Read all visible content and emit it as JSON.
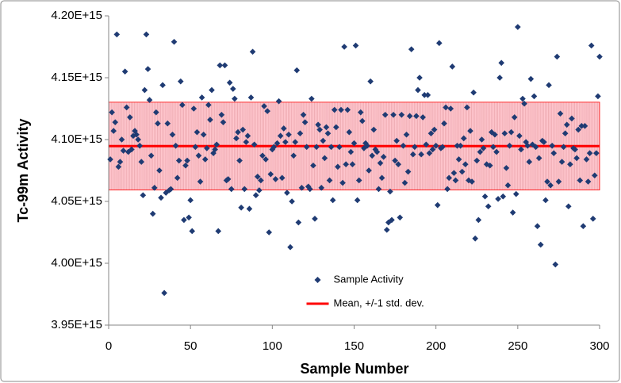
{
  "chart_data": {
    "type": "scatter",
    "x_label": "Sample Number",
    "y_label": "Tc-99m Activity",
    "x": [
      1,
      2,
      3,
      4,
      5,
      6,
      7,
      8,
      9,
      10,
      11,
      12,
      13,
      14,
      15,
      16,
      17,
      18,
      19,
      20,
      21,
      22,
      23,
      24,
      25,
      26,
      27,
      28,
      29,
      30,
      31,
      32,
      33,
      34,
      35,
      36,
      37,
      38,
      39,
      40,
      41,
      42,
      43,
      44,
      45,
      46,
      47,
      48,
      49,
      50,
      51,
      52,
      53,
      54,
      55,
      56,
      57,
      58,
      59,
      60,
      61,
      62,
      63,
      64,
      65,
      66,
      67,
      68,
      69,
      70,
      71,
      72,
      73,
      74,
      75,
      76,
      77,
      78,
      79,
      80,
      81,
      82,
      83,
      84,
      85,
      86,
      87,
      88,
      89,
      90,
      91,
      92,
      93,
      94,
      95,
      96,
      97,
      98,
      99,
      100,
      101,
      102,
      103,
      104,
      105,
      106,
      107,
      108,
      109,
      110,
      111,
      112,
      113,
      114,
      115,
      116,
      117,
      118,
      119,
      120,
      121,
      122,
      123,
      124,
      125,
      126,
      127,
      128,
      129,
      130,
      131,
      132,
      133,
      134,
      135,
      136,
      137,
      138,
      139,
      140,
      141,
      142,
      143,
      144,
      145,
      146,
      147,
      148,
      149,
      150,
      151,
      152,
      153,
      154,
      155,
      156,
      157,
      158,
      159,
      160,
      161,
      162,
      163,
      164,
      165,
      166,
      167,
      168,
      169,
      170,
      171,
      172,
      173,
      174,
      175,
      176,
      177,
      178,
      179,
      180,
      181,
      182,
      183,
      184,
      185,
      186,
      187,
      188,
      189,
      190,
      191,
      192,
      193,
      194,
      195,
      196,
      197,
      198,
      199,
      200,
      201,
      202,
      203,
      204,
      205,
      206,
      207,
      208,
      209,
      210,
      211,
      212,
      213,
      214,
      215,
      216,
      217,
      218,
      219,
      220,
      221,
      222,
      223,
      224,
      225,
      226,
      227,
      228,
      229,
      230,
      231,
      232,
      233,
      234,
      235,
      236,
      237,
      238,
      239,
      240,
      241,
      242,
      243,
      244,
      245,
      246,
      247,
      248,
      249,
      250,
      251,
      252,
      253,
      254,
      255,
      256,
      257,
      258,
      259,
      260,
      261,
      262,
      263,
      264,
      265,
      266,
      267,
      268,
      269,
      270,
      271,
      272,
      273,
      274,
      275,
      276,
      277,
      278,
      279,
      280,
      281,
      282,
      283,
      284,
      285,
      286,
      287,
      288,
      289,
      290,
      291,
      292,
      293,
      294,
      295,
      296,
      297,
      298,
      299,
      300
    ],
    "series": [
      {
        "name": "Sample Activity",
        "color": "#1f3b73",
        "values": [
          4084000000000000.0,
          4122000000000000.0,
          4107000000000000.0,
          4114000000000000.0,
          4185000000000000.0,
          4078000000000000.0,
          4082000000000000.0,
          4100000000000000.0,
          4091000000000000.0,
          4155000000000000.0,
          4126000000000000.0,
          4090000000000000.0,
          4118000000000000.0,
          4092000000000000.0,
          4103000000000000.0,
          4107000000000000.0,
          4104000000000000.0,
          4100000000000000.0,
          4095000000000000.0,
          4082000000000000.0,
          4055000000000000.0,
          4140000000000000.0,
          4185000000000000.0,
          4157000000000000.0,
          4132000000000000.0,
          4087000000000000.0,
          4040000000000000.0,
          4061000000000000.0,
          4122000000000000.0,
          4113000000000000.0,
          4075000000000000.0,
          4053000000000000.0,
          4144000000000000.0,
          3976000000000000.0,
          4057000000000000.0,
          4113000000000000.0,
          4059000000000000.0,
          4060000000000000.0,
          4104000000000000.0,
          4179000000000000.0,
          4095000000000000.0,
          4069000000000000.0,
          4083000000000000.0,
          4147000000000000.0,
          4128000000000000.0,
          4035000000000000.0,
          4079000000000000.0,
          4083000000000000.0,
          4037000000000000.0,
          4051000000000000.0,
          4026000000000000.0,
          4125000000000000.0,
          4094000000000000.0,
          4106000000000000.0,
          4087000000000000.0,
          4066000000000000.0,
          4134000000000000.0,
          4104000000000000.0,
          4084000000000000.0,
          4093000000000000.0,
          4128000000000000.0,
          4116000000000000.0,
          4140000000000000.0,
          4089000000000000.0,
          4092000000000000.0,
          4096000000000000.0,
          4026000000000000.0,
          4160000000000000.0,
          4120000000000000.0,
          4114000000000000.0,
          4160000000000000.0,
          4067000000000000.0,
          4068000000000000.0,
          4146000000000000.0,
          4060000000000000.0,
          4141000000000000.0,
          4133000000000000.0,
          4101000000000000.0,
          4106000000000000.0,
          4083000000000000.0,
          4045000000000000.0,
          4108000000000000.0,
          4060000000000000.0,
          4098000000000000.0,
          4103000000000000.0,
          4044000000000000.0,
          4134000000000000.0,
          4171000000000000.0,
          4096000000000000.0,
          4055000000000000.0,
          4070000000000000.0,
          4059000000000000.0,
          4067000000000000.0,
          4087000000000000.0,
          4127000000000000.0,
          4084000000000000.0,
          4123000000000000.0,
          4025000000000000.0,
          4072000000000000.0,
          4092000000000000.0,
          4094000000000000.0,
          4068000000000000.0,
          4097000000000000.0,
          4131000000000000.0,
          4103000000000000.0,
          4069000000000000.0,
          4109000000000000.0,
          4098000000000000.0,
          4057000000000000.0,
          4104000000000000.0,
          4013000000000000.0,
          4050000000000000.0,
          4087000000000000.0,
          4098000000000000.0,
          4156000000000000.0,
          4033000000000000.0,
          4105000000000000.0,
          4061000000000000.0,
          4120000000000000.0,
          4114000000000000.0,
          4094000000000000.0,
          4062000000000000.0,
          4060000000000000.0,
          4133000000000000.0,
          4079000000000000.0,
          4036000000000000.0,
          4094000000000000.0,
          4112000000000000.0,
          4108000000000000.0,
          4061000000000000.0,
          4099000000000000.0,
          4085000000000000.0,
          4110000000000000.0,
          4105000000000000.0,
          4067000000000000.0,
          4094000000000000.0,
          4051000000000000.0,
          4124000000000000.0,
          4110000000000000.0,
          4078000000000000.0,
          4094000000000000.0,
          4124000000000000.0,
          4065000000000000.0,
          4175000000000000.0,
          4080000000000000.0,
          4124000000000000.0,
          4106000000000000.0,
          4090000000000000.0,
          4080000000000000.0,
          4097000000000000.0,
          4176000000000000.0,
          4051000000000000.0,
          4067000000000000.0,
          4122000000000000.0,
          4115000000000000.0,
          4093000000000000.0,
          4097000000000000.0,
          4095000000000000.0,
          4075000000000000.0,
          4147000000000000.0,
          4087000000000000.0,
          4108000000000000.0,
          4092000000000000.0,
          4090000000000000.0,
          4060000000000000.0,
          4081000000000000.0,
          4069000000000000.0,
          4086000000000000.0,
          4120000000000000.0,
          4027000000000000.0,
          4033000000000000.0,
          4058000000000000.0,
          4035000000000000.0,
          4120000000000000.0,
          4083000000000000.0,
          4099000000000000.0,
          4080000000000000.0,
          4037000000000000.0,
          4120000000000000.0,
          4095000000000000.0,
          4065000000000000.0,
          4104000000000000.0,
          4074000000000000.0,
          4119000000000000.0,
          4173000000000000.0,
          4088000000000000.0,
          4094000000000000.0,
          4119000000000000.0,
          4140000000000000.0,
          4150000000000000.0,
          4088000000000000.0,
          4118000000000000.0,
          4136000000000000.0,
          4096000000000000.0,
          4136000000000000.0,
          4089000000000000.0,
          4105000000000000.0,
          4092000000000000.0,
          4108000000000000.0,
          4095000000000000.0,
          4047000000000000.0,
          4178000000000000.0,
          4093000000000000.0,
          4094000000000000.0,
          4113000000000000.0,
          4126000000000000.0,
          4060000000000000.0,
          4069000000000000.0,
          4125000000000000.0,
          4159000000000000.0,
          4073000000000000.0,
          4067000000000000.0,
          4095000000000000.0,
          4084000000000000.0,
          4095000000000000.0,
          4074000000000000.0,
          4101000000000000.0,
          4080000000000000.0,
          4126000000000000.0,
          4067000000000000.0,
          4107000000000000.0,
          4066000000000000.0,
          4138000000000000.0,
          4020000000000000.0,
          4083000000000000.0,
          4035000000000000.0,
          4090000000000000.0,
          4100000000000000.0,
          4093000000000000.0,
          4054000000000000.0,
          4080000000000000.0,
          4046000000000000.0,
          4079000000000000.0,
          4106000000000000.0,
          4094000000000000.0,
          4104000000000000.0,
          4090000000000000.0,
          4052000000000000.0,
          4150000000000000.0,
          4162000000000000.0,
          4054000000000000.0,
          4105000000000000.0,
          4077000000000000.0,
          4063000000000000.0,
          4095000000000000.0,
          4106000000000000.0,
          4041000000000000.0,
          4118000000000000.0,
          4056000000000000.0,
          4191000000000000.0,
          4103000000000000.0,
          4092000000000000.0,
          4133000000000000.0,
          4129000000000000.0,
          4098000000000000.0,
          4095000000000000.0,
          4082000000000000.0,
          4149000000000000.0,
          4096000000000000.0,
          4135000000000000.0,
          4094000000000000.0,
          4030000000000000.0,
          4085000000000000.0,
          4015000000000000.0,
          4099000000000000.0,
          4098000000000000.0,
          4051000000000000.0,
          4066000000000000.0,
          4144000000000000.0,
          4063000000000000.0,
          4095000000000000.0,
          4089000000000000.0,
          3999000000000000.0,
          4167000000000000.0,
          4066000000000000.0,
          4121000000000000.0,
          4082000000000000.0,
          4094000000000000.0,
          4105000000000000.0,
          4112000000000000.0,
          4046000000000000.0,
          4080000000000000.0,
          4117000000000000.0,
          4093000000000000.0,
          4092000000000000.0,
          4085000000000000.0,
          4108000000000000.0,
          4067000000000000.0,
          4111000000000000.0,
          4030000000000000.0,
          4111000000000000.0,
          4084000000000000.0,
          4066000000000000.0,
          4089000000000000.0,
          4176000000000000.0,
          4036000000000000.0,
          4071000000000000.0,
          4089000000000000.0,
          4135000000000000.0,
          4167000000000000.0
        ]
      }
    ],
    "reference": {
      "name": "Mean, +/-1 std. dev.",
      "color": "#ff0000",
      "band_color": "#ffc7ce",
      "mean": 4094700000000000.0,
      "std": 35500000000000.0
    },
    "xlim": [
      0,
      300
    ],
    "xticks": [
      0,
      50,
      100,
      150,
      200,
      250,
      300
    ],
    "ylim": [
      3950000000000000.0,
      4200000000000000.0
    ],
    "yticks": [
      {
        "value": 3950000000000000.0,
        "label": "3.95E+15"
      },
      {
        "value": 4000000000000000.0,
        "label": "4.00E+15"
      },
      {
        "value": 4050000000000000.0,
        "label": "4.05E+15"
      },
      {
        "value": 4100000000000000.0,
        "label": "4.10E+15"
      },
      {
        "value": 4150000000000000.0,
        "label": "4.15E+15"
      },
      {
        "value": 4200000000000000.0,
        "label": "4.20E+15"
      }
    ],
    "legend": "lower center"
  }
}
